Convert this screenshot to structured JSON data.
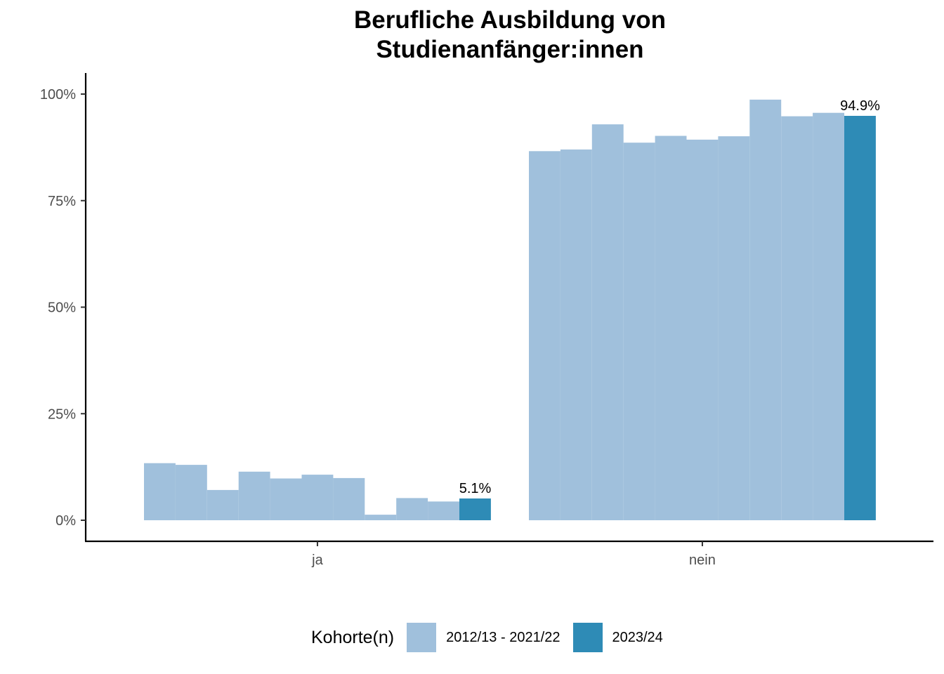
{
  "chart_data": {
    "type": "bar",
    "title": [
      "Berufliche Ausbildung von",
      "Studienanfänger:innen"
    ],
    "xlabel": "",
    "ylabel": "",
    "categories": [
      "ja",
      "nein"
    ],
    "y_ticks": [
      "0%",
      "25%",
      "50%",
      "75%",
      "100%"
    ],
    "ylim": [
      0,
      1.05
    ],
    "series": [
      {
        "name": "2012/13 - 2021/22",
        "color": "#a0c0dc",
        "cohort_index": 0,
        "values": [
          0.134,
          0.866
        ]
      },
      {
        "name": "2012/13 - 2021/22",
        "color": "#a0c0dc",
        "cohort_index": 1,
        "values": [
          0.13,
          0.87
        ]
      },
      {
        "name": "2012/13 - 2021/22",
        "color": "#a0c0dc",
        "cohort_index": 2,
        "values": [
          0.071,
          0.929
        ]
      },
      {
        "name": "2012/13 - 2021/22",
        "color": "#a0c0dc",
        "cohort_index": 3,
        "values": [
          0.114,
          0.886
        ]
      },
      {
        "name": "2012/13 - 2021/22",
        "color": "#a0c0dc",
        "cohort_index": 4,
        "values": [
          0.098,
          0.902
        ]
      },
      {
        "name": "2012/13 - 2021/22",
        "color": "#a0c0dc",
        "cohort_index": 5,
        "values": [
          0.107,
          0.893
        ]
      },
      {
        "name": "2012/13 - 2021/22",
        "color": "#a0c0dc",
        "cohort_index": 6,
        "values": [
          0.099,
          0.901
        ]
      },
      {
        "name": "2012/13 - 2021/22",
        "color": "#a0c0dc",
        "cohort_index": 7,
        "values": [
          0.013,
          0.987
        ]
      },
      {
        "name": "2012/13 - 2021/22",
        "color": "#a0c0dc",
        "cohort_index": 8,
        "values": [
          0.052,
          0.948
        ]
      },
      {
        "name": "2012/13 - 2021/22",
        "color": "#a0c0dc",
        "cohort_index": 9,
        "values": [
          0.044,
          0.956
        ]
      },
      {
        "name": "2023/24",
        "color": "#2e8bb6",
        "cohort_index": 10,
        "values": [
          0.051,
          0.949
        ],
        "labels": [
          "5.1%",
          "94.9%"
        ]
      }
    ],
    "legend": {
      "title": "Kohorte(n)",
      "position": "bottom",
      "entries": [
        {
          "label": "2012/13 - 2021/22",
          "color": "#a0c0dc"
        },
        {
          "label": "2023/24",
          "color": "#2e8bb6"
        }
      ]
    },
    "grid": false
  }
}
